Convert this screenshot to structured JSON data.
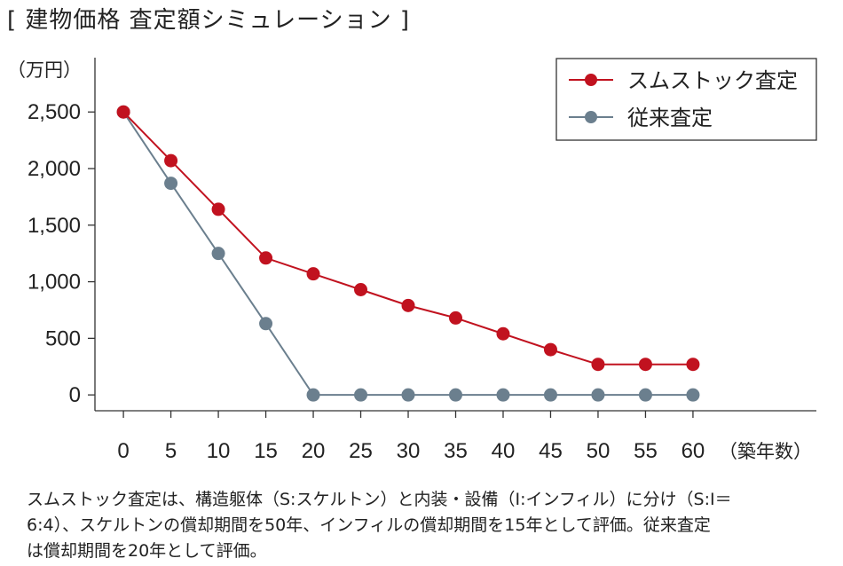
{
  "title": "[ 建物価格 査定額シミュレーション ]",
  "note_lines": [
    "スムストック査定は、構造躯体（S:スケルトン）と内装・設備（I:インフィル）に分け（S:I＝",
    "6:4）、スケルトンの償却期間を50年、インフィルの償却期間を15年として評価。従来査定",
    "は償却期間を20年として評価。"
  ],
  "chart_data": {
    "type": "line",
    "ylabel": "（万円）",
    "xlabel": "（築年数）",
    "x": [
      0,
      5,
      10,
      15,
      20,
      25,
      30,
      35,
      40,
      45,
      50,
      55,
      60
    ],
    "xlim": [
      -3,
      73
    ],
    "ylim": [
      -140,
      2980
    ],
    "yticks": [
      0,
      500,
      1000,
      1500,
      2000,
      2500
    ],
    "ytick_labels": [
      "0",
      "500",
      "1,000",
      "1,500",
      "2,000",
      "2,500"
    ],
    "xtick_labels": [
      "0",
      "5",
      "10",
      "15",
      "20",
      "25",
      "30",
      "35",
      "40",
      "45",
      "50",
      "55",
      "60"
    ],
    "legend_position": "top-right",
    "series": [
      {
        "name": "スムストック査定",
        "color": "#c1121f",
        "values": [
          2500,
          2070,
          1640,
          1210,
          1070,
          930,
          790,
          680,
          540,
          400,
          270,
          270,
          270
        ]
      },
      {
        "name": "従来査定",
        "color": "#6b7f8e",
        "values": [
          2500,
          1870,
          1250,
          630,
          0,
          0,
          0,
          0,
          0,
          0,
          0,
          0,
          0
        ]
      }
    ]
  }
}
